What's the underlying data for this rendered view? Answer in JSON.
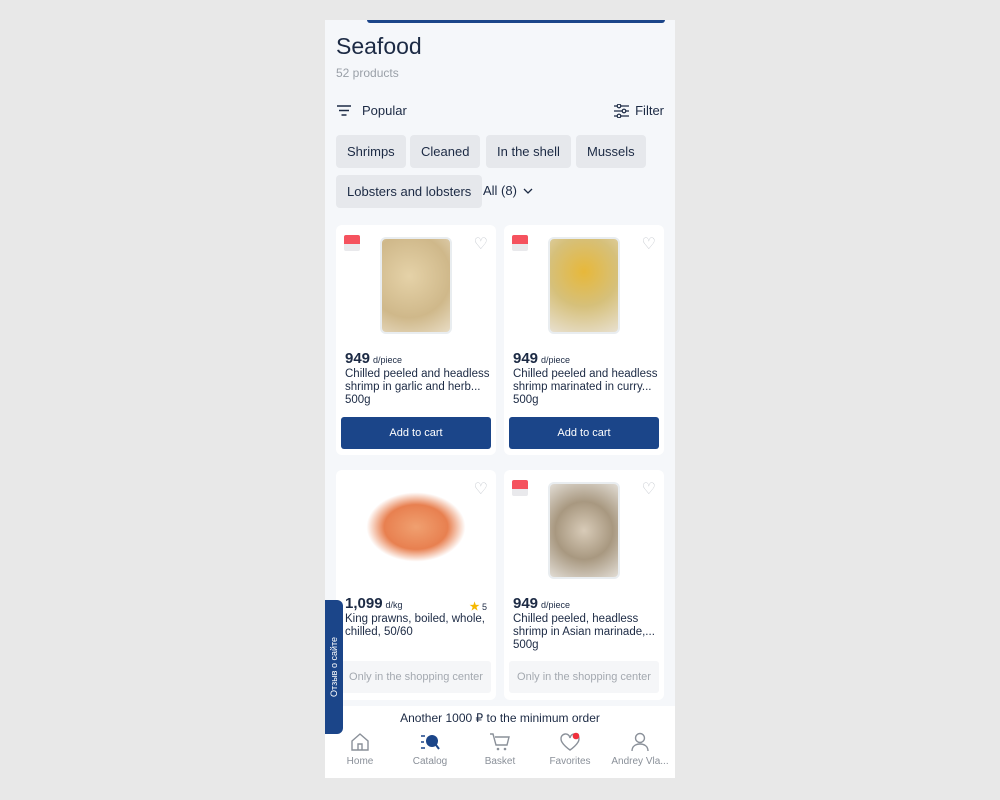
{
  "title": "Seafood",
  "count": "52 products",
  "sort_label": "Popular",
  "filter_label": "Filter",
  "chips": [
    "Shrimps",
    "Cleaned",
    "In the shell",
    "Mussels",
    "Lobsters and lobsters"
  ],
  "all_label": "All (8)",
  "products": [
    {
      "price": "949",
      "unit": "d/piece",
      "name": "Chilled peeled and headless shrimp in garlic and herb... 500g",
      "action": "Add to cart",
      "badge": true,
      "image": "shrimp-tray-garlic"
    },
    {
      "price": "949",
      "unit": "d/piece",
      "name": "Chilled peeled and headless shrimp marinated in curry... 500g",
      "action": "Add to cart",
      "badge": true,
      "image": "shrimp-tray-curry"
    },
    {
      "price": "1,099",
      "unit": "d/kg",
      "rating": "5",
      "name": "King prawns, boiled, whole, chilled, 50/60",
      "action": "Only in the shopping center",
      "badge": false,
      "image": "king-prawns"
    },
    {
      "price": "949",
      "unit": "d/piece",
      "name": "Chilled peeled, headless shrimp in Asian marinade,... 500g",
      "action": "Only in the shopping center",
      "badge": true,
      "image": "shrimp-tray-asian"
    }
  ],
  "min_order": "Another 1000 ₽ to the minimum order",
  "nav": [
    {
      "label": "Home",
      "icon": "home-icon"
    },
    {
      "label": "Catalog",
      "icon": "catalog-icon"
    },
    {
      "label": "Basket",
      "icon": "cart-icon"
    },
    {
      "label": "Favorites",
      "icon": "heart-icon"
    },
    {
      "label": "Andrey Vla...",
      "icon": "user-icon"
    }
  ],
  "feedback": "Отзыв о сайте",
  "colors": {
    "primary": "#1b4589",
    "badge": "#f5525e",
    "star": "#f5b800"
  }
}
